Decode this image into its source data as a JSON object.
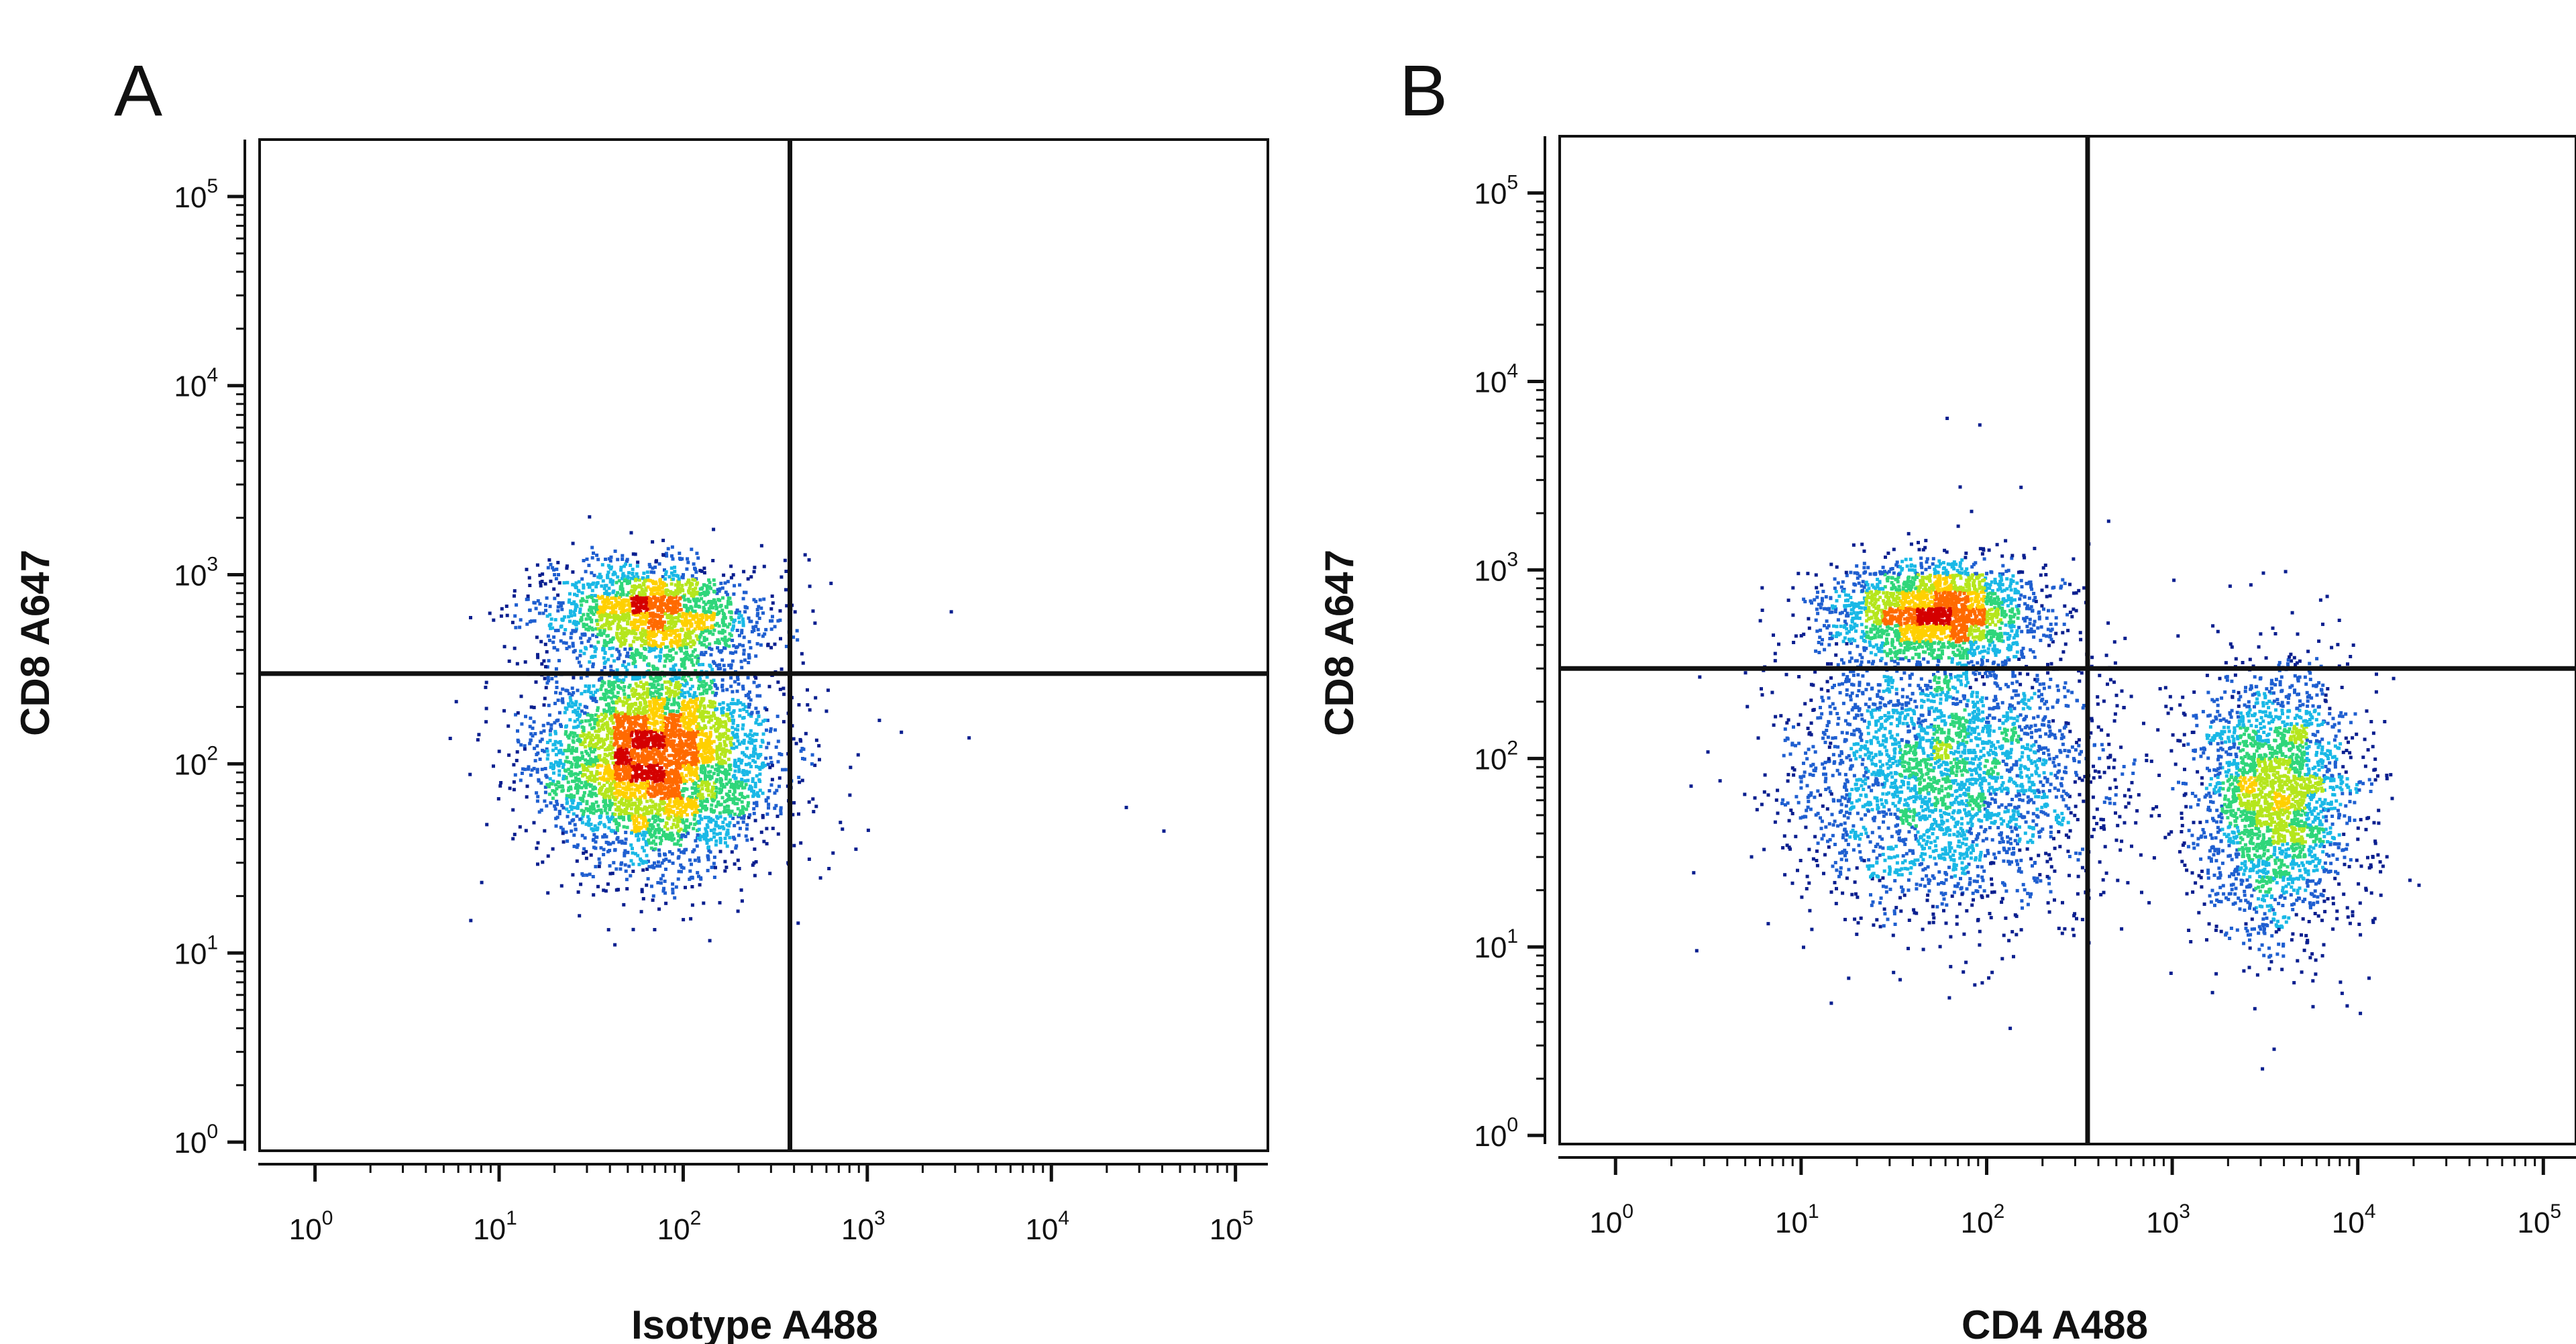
{
  "chart_data": [
    {
      "type": "scatter",
      "panel_label": "A",
      "xlabel": "Isotype A488",
      "ylabel": "CD8 A647",
      "xscale": "log",
      "yscale": "log",
      "xlim": [
        0.5,
        150000
      ],
      "ylim": [
        0.9,
        200000
      ],
      "x_ticks": [
        "10^0",
        "10^1",
        "10^2",
        "10^3",
        "10^4",
        "10^5"
      ],
      "y_ticks": [
        "10^0",
        "10^1",
        "10^2",
        "10^3",
        "10^4",
        "10^5"
      ],
      "quadrant_gate": {
        "x": 380,
        "y": 300
      },
      "color_scale": [
        "#0a1f8f",
        "#1f5fd0",
        "#19b8e6",
        "#2fd67a",
        "#b5e61d",
        "#ffd000",
        "#ff6a00",
        "#d40000"
      ],
      "populations": [
        {
          "name": "",
          "x_center": 70,
          "y_center": 110,
          "x_spread_log": 0.32,
          "y_spread_log": 0.28,
          "count": 4200
        },
        {
          "name": "",
          "x_center": 65,
          "y_center": 650,
          "x_spread_log": 0.3,
          "y_spread_log": 0.13,
          "count": 1600
        }
      ],
      "outliers": [
        [
          450,
          1300
        ],
        [
          600,
          250
        ],
        [
          2800,
          650
        ],
        [
          1500,
          150
        ],
        [
          3500,
          140
        ],
        [
          25000,
          60
        ],
        [
          40000,
          45
        ],
        [
          700,
          50
        ]
      ]
    },
    {
      "type": "scatter",
      "panel_label": "B",
      "xlabel": "CD4 A488",
      "ylabel": "CD8 A647",
      "xscale": "log",
      "yscale": "log",
      "xlim": [
        0.5,
        150000
      ],
      "ylim": [
        0.9,
        200000
      ],
      "x_ticks": [
        "10^0",
        "10^1",
        "10^2",
        "10^3",
        "10^4",
        "10^5"
      ],
      "y_ticks": [
        "10^0",
        "10^1",
        "10^2",
        "10^3",
        "10^4",
        "10^5"
      ],
      "quadrant_gate": {
        "x": 350,
        "y": 300
      },
      "color_scale": [
        "#0a1f8f",
        "#1f5fd0",
        "#19b8e6",
        "#2fd67a",
        "#b5e61d",
        "#ffd000",
        "#ff6a00",
        "#d40000"
      ],
      "populations": [
        {
          "name": "",
          "x_center": 50,
          "y_center": 620,
          "x_spread_log": 0.28,
          "y_spread_log": 0.13,
          "count": 2000
        },
        {
          "name": "",
          "x_center": 60,
          "y_center": 85,
          "x_spread_log": 0.42,
          "y_spread_log": 0.38,
          "count": 3000
        },
        {
          "name": "",
          "x_center": 3500,
          "y_center": 60,
          "x_spread_log": 0.22,
          "y_spread_log": 0.35,
          "count": 2400
        }
      ],
      "outliers": [
        [
          60,
          6500
        ],
        [
          90,
          6000
        ],
        [
          1000,
          900
        ],
        [
          2600,
          850
        ],
        [
          4000,
          1000
        ],
        [
          150,
          2800
        ],
        [
          3000,
          2.3
        ]
      ]
    }
  ]
}
